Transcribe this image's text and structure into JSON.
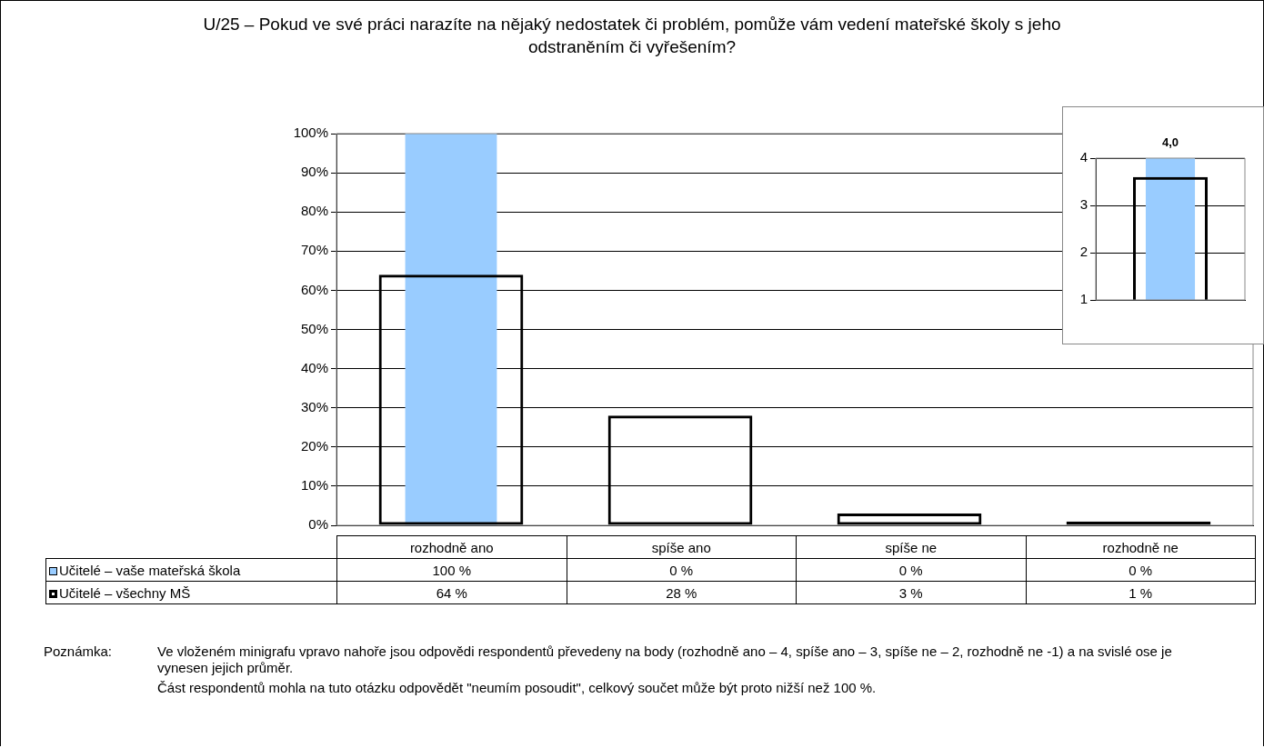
{
  "chart_data": [
    {
      "type": "bar",
      "title": "U/25 – Pokud ve své práci narazíte na nějaký nedostatek či problém, pomůže vám vedení mateřské školy s jeho odstraněním či vyřešením?",
      "categories": [
        "rozhodně ano",
        "spíše ano",
        "spíše ne",
        "rozhodně ne"
      ],
      "series": [
        {
          "name": "Učitelé – vaše mateřská škola",
          "color": "#99ccff",
          "values": [
            100,
            0,
            0,
            0
          ],
          "value_labels": [
            "100 %",
            "0 %",
            "0 %",
            "0 %"
          ]
        },
        {
          "name": "Učitelé – všechny MŠ",
          "color": "#000000",
          "values": [
            64,
            28,
            3,
            1
          ],
          "value_labels": [
            "64 %",
            "28 %",
            "3 %",
            "1 %"
          ]
        }
      ],
      "ylim": [
        0,
        100
      ],
      "yticks": [
        {
          "value": 0,
          "label": "0%"
        },
        {
          "value": 10,
          "label": "10%"
        },
        {
          "value": 20,
          "label": "20%"
        },
        {
          "value": 30,
          "label": "30%"
        },
        {
          "value": 40,
          "label": "40%"
        },
        {
          "value": 50,
          "label": "50%"
        },
        {
          "value": 60,
          "label": "60%"
        },
        {
          "value": 70,
          "label": "70%"
        },
        {
          "value": 80,
          "label": "80%"
        },
        {
          "value": 90,
          "label": "90%"
        },
        {
          "value": 100,
          "label": "100%"
        }
      ],
      "grid": "y",
      "legend": "bottom",
      "annotations": [
        "Poznámka:",
        "Ve vloženém minigrafu vpravo nahoře jsou odpovědi respondentů převedeny na body (rozhodně ano – 4, spíše ano – 3, spíše ne – 2, rozhodně ne -1) a na svislé ose je vynesen jejich průměr.",
        "Část respondentů mohla na tuto otázku odpovědět \"neumím posoudit\", celkový součet může být proto nižší než 100 %."
      ]
    },
    {
      "type": "bar",
      "categories": [
        null
      ],
      "series": [
        {
          "color": "#99ccff",
          "values": [
            4.0
          ],
          "value_labels": [
            "4,0"
          ]
        },
        {
          "color": "#000000",
          "values": [
            3.6
          ]
        }
      ],
      "ylim": [
        1,
        4
      ],
      "yticks": [
        1,
        2,
        3,
        4
      ],
      "grid": "y"
    }
  ]
}
